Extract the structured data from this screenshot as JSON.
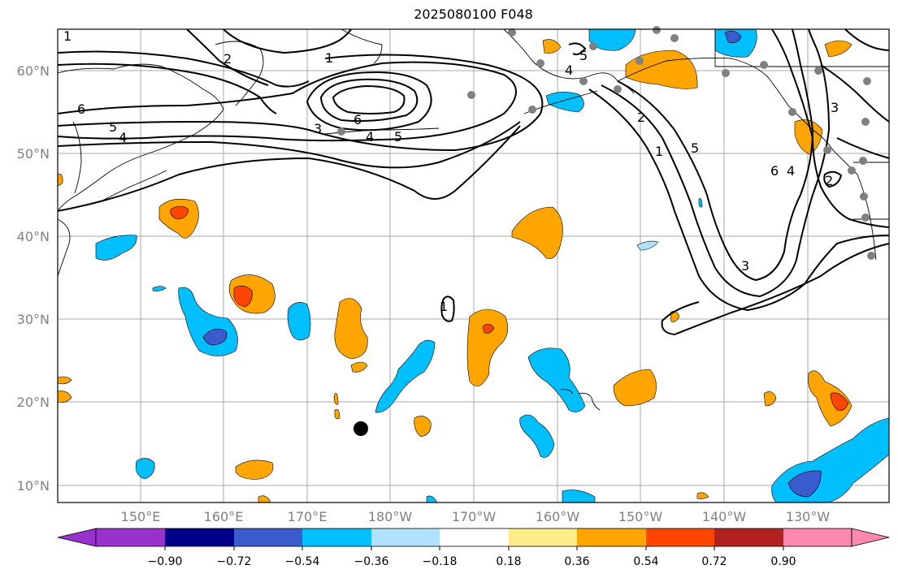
{
  "title": "2025080100 F048",
  "map": {
    "lat_labels": [
      "60°N",
      "50°N",
      "40°N",
      "30°N",
      "20°N",
      "10°N"
    ],
    "lon_labels": [
      "150°E",
      "160°E",
      "170°E",
      "180°W",
      "170°W",
      "160°W",
      "150°W",
      "140°W",
      "130°W"
    ],
    "contour_labels": [
      "1",
      "2",
      "1",
      "4",
      "6",
      "5",
      "4",
      "3",
      "6",
      "4",
      "5",
      "5",
      "1",
      "5",
      "2",
      "3",
      "6",
      "4",
      "3",
      "2",
      "1"
    ],
    "storm_marker": "storm-center"
  },
  "colorbar": {
    "ticks": [
      "−0.90",
      "−0.72",
      "−0.54",
      "−0.36",
      "−0.18",
      "0.18",
      "0.36",
      "0.54",
      "0.72",
      "0.90"
    ],
    "colors": [
      "#9932cc",
      "#00008b",
      "#3a5bcd",
      "#00bfff",
      "#b0e2ff",
      "#ffffff",
      "#ffec8b",
      "#ffa500",
      "#ff4500",
      "#b22222",
      "#ff88b0"
    ]
  },
  "colors": {
    "positive_light": "#ffa500",
    "positive_strong": "#ff4500",
    "negative_light": "#00bfff",
    "negative_strong": "#3a5bcd",
    "station_dot": "#808080"
  }
}
